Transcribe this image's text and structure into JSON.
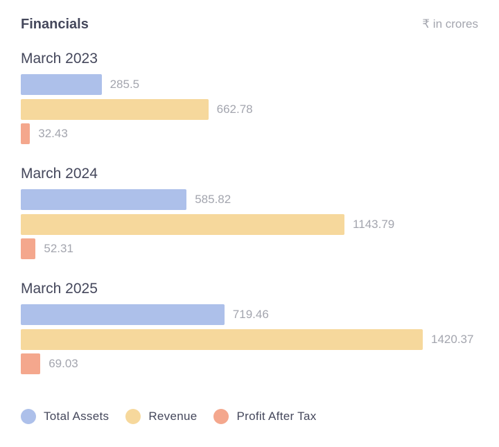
{
  "header": {
    "title": "Financials",
    "unit": "₹ in crores"
  },
  "chart_data": {
    "type": "bar",
    "orientation": "horizontal",
    "categories": [
      "March 2023",
      "March 2024",
      "March 2025"
    ],
    "series": [
      {
        "name": "Total Assets",
        "color": "#adc0ea",
        "values": [
          285.5,
          585.82,
          719.46
        ],
        "labels": [
          "285.5",
          "585.82",
          "719.46"
        ]
      },
      {
        "name": "Revenue",
        "color": "#f6d89c",
        "values": [
          662.78,
          1143.79,
          1420.37
        ],
        "labels": [
          "662.78",
          "1143.79",
          "1420.37"
        ]
      },
      {
        "name": "Profit After Tax",
        "color": "#f4a78d",
        "values": [
          32.43,
          52.31,
          69.03
        ],
        "labels": [
          "32.43",
          "52.31",
          "69.03"
        ]
      }
    ],
    "legend": "bottom-left",
    "grid": false
  }
}
